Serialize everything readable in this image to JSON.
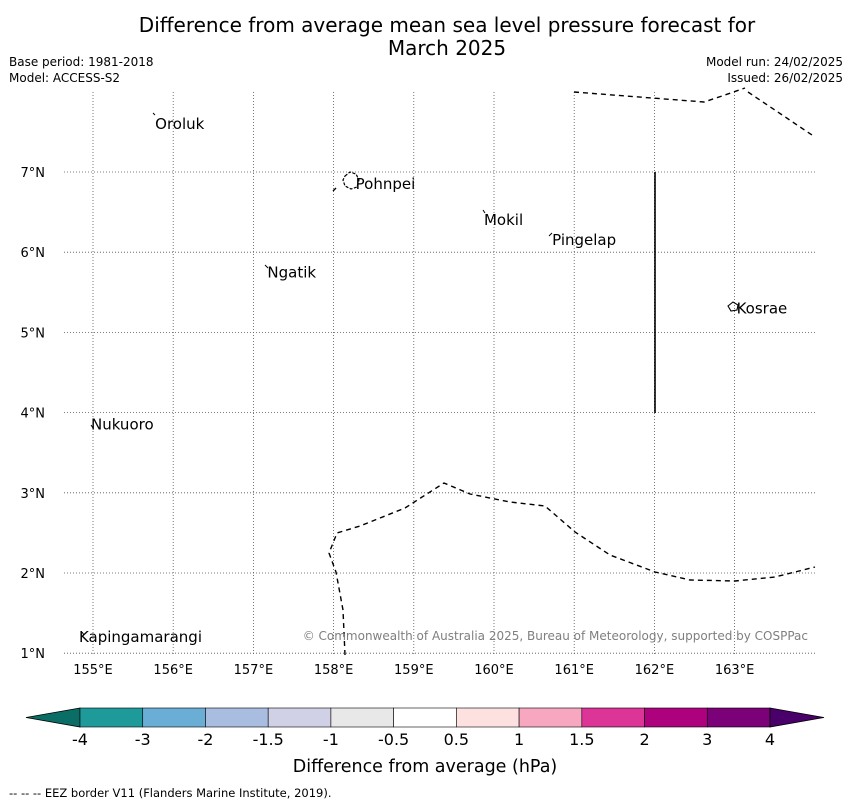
{
  "header": {
    "title_line1": "Difference from average mean sea level pressure forecast for",
    "title_line2": "March 2025",
    "base_period": "Base period: 1981-2018",
    "model": "Model: ACCESS-S2",
    "model_run": "Model run: 24/02/2025",
    "issued": "Issued: 26/02/2025"
  },
  "map": {
    "lon_ticks": [
      "155°E",
      "156°E",
      "157°E",
      "158°E",
      "159°E",
      "160°E",
      "161°E",
      "162°E",
      "163°E"
    ],
    "lat_ticks": [
      "1°N",
      "2°N",
      "3°N",
      "4°N",
      "5°N",
      "6°N",
      "7°N"
    ],
    "places": [
      {
        "name": "Oroluk",
        "lon": 155.75,
        "lat": 7.6
      },
      {
        "name": "Pohnpei",
        "lon": 158.25,
        "lat": 6.85
      },
      {
        "name": "Mokil",
        "lon": 159.85,
        "lat": 6.4
      },
      {
        "name": "Pingelap",
        "lon": 160.7,
        "lat": 6.15
      },
      {
        "name": "Ngatik",
        "lon": 157.15,
        "lat": 5.75
      },
      {
        "name": "Kosrae",
        "lon": 163.0,
        "lat": 5.3
      },
      {
        "name": "Nukuoro",
        "lon": 154.95,
        "lat": 3.85
      },
      {
        "name": "Kapingamarangi",
        "lon": 154.8,
        "lat": 1.2
      }
    ],
    "copyright": "© Commonwealth of Australia 2025, Bureau of Meteorology, supported by COSPPac"
  },
  "colorbar": {
    "title": "Difference from average (hPa)",
    "labels": [
      "-4",
      "-3",
      "-2",
      "-1.5",
      "-1",
      "-0.5",
      "0.5",
      "1",
      "1.5",
      "2",
      "3",
      "4"
    ],
    "colors": [
      "#1e9a9a",
      "#6aadd5",
      "#a9bde0",
      "#d0d1e6",
      "#e8e8e8",
      "#ffffff",
      "#fde0e0",
      "#f7a8c0",
      "#dd3497",
      "#ae017e",
      "#7a0177"
    ],
    "under_color": "#0a6e66",
    "over_color": "#49006a"
  },
  "footer": {
    "legend": "--  --  -- EEZ border V11 (Flanders Marine Institute, 2019)."
  }
}
